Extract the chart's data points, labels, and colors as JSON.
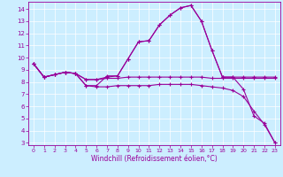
{
  "x": [
    0,
    1,
    2,
    3,
    4,
    5,
    6,
    7,
    8,
    9,
    10,
    11,
    12,
    13,
    14,
    15,
    16,
    17,
    18,
    19,
    20,
    21,
    22,
    23
  ],
  "line1": [
    9.5,
    8.4,
    8.6,
    8.8,
    8.7,
    7.7,
    7.7,
    8.5,
    8.5,
    9.9,
    11.3,
    11.4,
    12.7,
    13.5,
    14.1,
    14.3,
    13.0,
    10.6,
    8.4,
    8.4,
    8.4,
    8.4,
    8.4,
    8.4
  ],
  "line2": [
    9.5,
    8.4,
    8.6,
    8.8,
    8.7,
    8.2,
    8.2,
    8.4,
    8.5,
    9.9,
    11.3,
    11.4,
    12.7,
    13.5,
    14.1,
    14.3,
    13.0,
    10.6,
    8.4,
    8.4,
    7.4,
    5.2,
    4.6,
    3.0
  ],
  "line3": [
    9.5,
    8.4,
    8.6,
    8.8,
    8.7,
    8.2,
    8.2,
    8.3,
    8.3,
    8.4,
    8.4,
    8.4,
    8.4,
    8.4,
    8.4,
    8.4,
    8.4,
    8.3,
    8.3,
    8.3,
    8.3,
    8.3,
    8.3,
    8.3
  ],
  "line4": [
    9.5,
    8.4,
    8.6,
    8.8,
    8.7,
    7.7,
    7.6,
    7.6,
    7.7,
    7.7,
    7.7,
    7.7,
    7.8,
    7.8,
    7.8,
    7.8,
    7.7,
    7.6,
    7.5,
    7.3,
    6.8,
    5.6,
    4.5,
    3.0
  ],
  "color": "#990099",
  "bg_color": "#cceeff",
  "xlabel": "Windchill (Refroidissement éolien,°C)",
  "ylim_min": 2.8,
  "ylim_max": 14.6,
  "xlim_min": -0.5,
  "xlim_max": 23.5,
  "yticks": [
    3,
    4,
    5,
    6,
    7,
    8,
    9,
    10,
    11,
    12,
    13,
    14
  ],
  "xticks": [
    0,
    1,
    2,
    3,
    4,
    5,
    6,
    7,
    8,
    9,
    10,
    11,
    12,
    13,
    14,
    15,
    16,
    17,
    18,
    19,
    20,
    21,
    22,
    23
  ]
}
